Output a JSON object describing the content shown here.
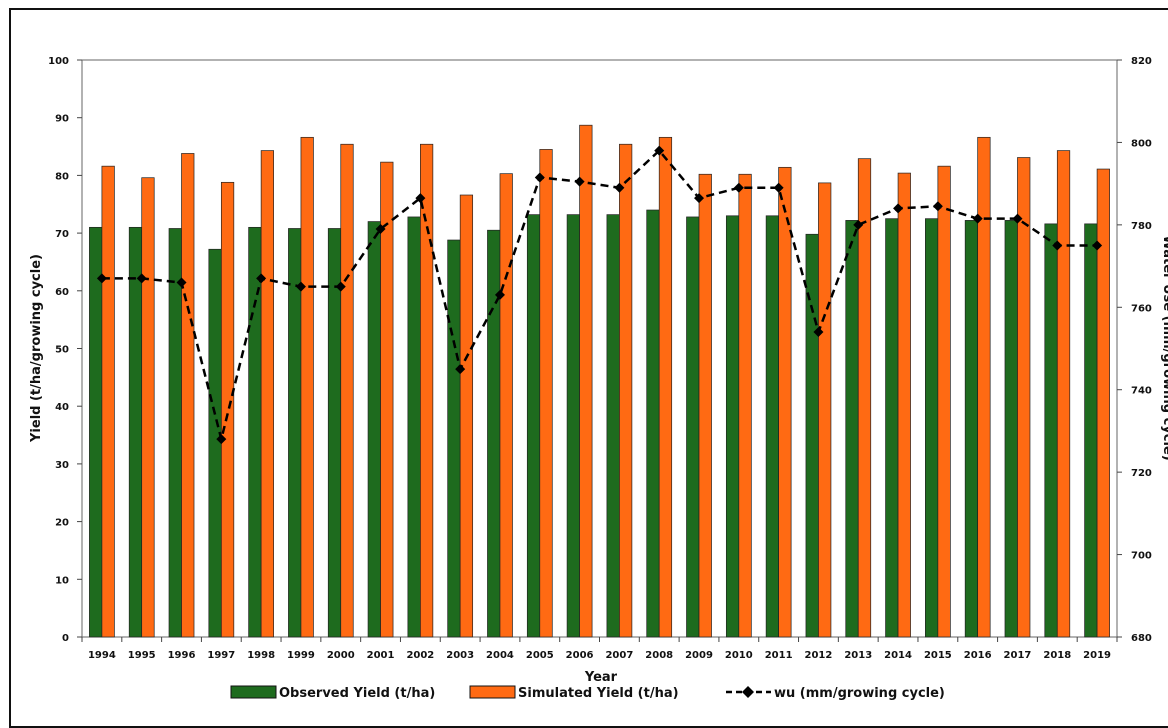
{
  "chart_data": {
    "type": "bar",
    "categories": [
      "1994",
      "1995",
      "1996",
      "1997",
      "1998",
      "1999",
      "2000",
      "2001",
      "2002",
      "2003",
      "2004",
      "2005",
      "2006",
      "2007",
      "2008",
      "2009",
      "2010",
      "2011",
      "2012",
      "2013",
      "2014",
      "2015",
      "2016",
      "2017",
      "2018",
      "2019"
    ],
    "series": [
      {
        "name": "Observed Yield (t/ha)",
        "type": "bar",
        "axis": "left",
        "color": "#1e6b1e",
        "values": [
          71,
          71,
          70.8,
          67.2,
          71,
          70.8,
          70.8,
          72,
          72.8,
          68.8,
          70.5,
          73.2,
          73.2,
          73.2,
          74,
          72.8,
          73,
          73,
          69.8,
          72.2,
          72.5,
          72.5,
          72.2,
          72.2,
          71.6,
          71.6
        ]
      },
      {
        "name": "Simulated Yield (t/ha)",
        "type": "bar",
        "axis": "left",
        "color": "#ff6a13",
        "values": [
          81.6,
          79.6,
          83.8,
          78.8,
          84.3,
          86.6,
          85.4,
          82.3,
          85.4,
          76.6,
          80.3,
          84.5,
          88.7,
          85.4,
          86.6,
          80.2,
          80.2,
          81.4,
          78.7,
          82.9,
          80.4,
          81.6,
          86.6,
          83.1,
          84.3,
          81.1
        ]
      },
      {
        "name": "wu (mm/growing cycle)",
        "type": "line",
        "axis": "right",
        "color": "#000000",
        "dash": true,
        "marker": "diamond",
        "values": [
          767,
          767,
          766,
          728,
          767,
          765,
          765,
          779,
          786.5,
          745,
          763,
          791.5,
          790.5,
          789,
          798,
          786.5,
          789,
          789,
          754,
          780,
          784,
          784.5,
          781.5,
          781.5,
          775,
          775
        ]
      }
    ],
    "xlabel": "Year",
    "ylabel": "Yield (t/ha/growing cycle)",
    "y2label": "Water Use (mm/growing cycle)",
    "ylim": [
      0,
      100
    ],
    "yticks": [
      0,
      10,
      20,
      30,
      40,
      50,
      60,
      70,
      80,
      90,
      100
    ],
    "y2lim": [
      680,
      820
    ],
    "y2ticks": [
      680,
      700,
      720,
      740,
      760,
      780,
      800,
      820
    ],
    "grid": false,
    "legend": "bottom"
  }
}
